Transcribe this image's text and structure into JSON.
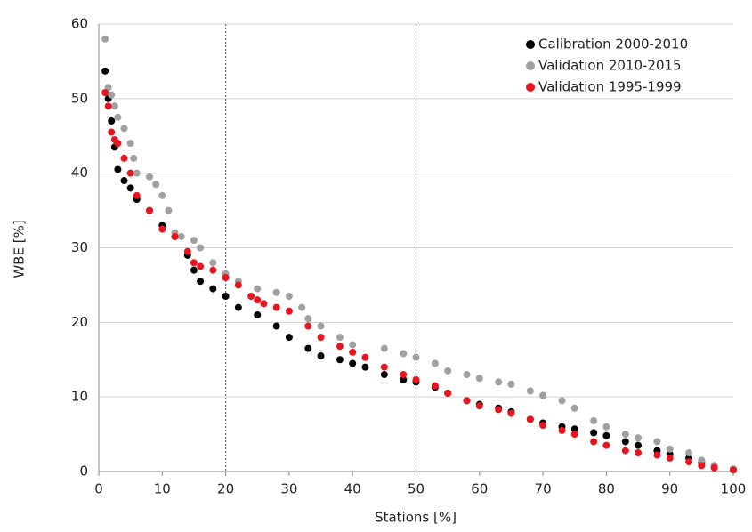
{
  "chart_data": {
    "type": "scatter",
    "x_label": "Stations [%]",
    "y_label": "WBE [%]",
    "xlim": [
      0,
      100
    ],
    "xticks": [
      0,
      10,
      20,
      30,
      40,
      50,
      60,
      70,
      80,
      90,
      100
    ],
    "ylim": [
      0,
      60
    ],
    "yticks": [
      0,
      10,
      20,
      30,
      40,
      50,
      60
    ],
    "grid": true,
    "vlines": [
      20,
      50
    ],
    "vline_color": "#4a7bc8",
    "legend": "upper right",
    "series": [
      {
        "name": "Calibration 2000-2010",
        "color": "#000000",
        "x": [
          1,
          1.5,
          2,
          2.5,
          3,
          4,
          5,
          6,
          8,
          10,
          12,
          14,
          15,
          16,
          18,
          20,
          22,
          25,
          28,
          30,
          33,
          35,
          38,
          40,
          42,
          45,
          48,
          50,
          53,
          55,
          58,
          60,
          63,
          65,
          68,
          70,
          73,
          75,
          78,
          80,
          83,
          85,
          88,
          90,
          93,
          95,
          97,
          100
        ],
        "values": [
          53.7,
          50,
          47,
          43.5,
          40.5,
          39,
          38,
          36.5,
          35,
          33,
          31.5,
          29,
          27,
          25.5,
          24.5,
          23.5,
          22,
          21,
          19.5,
          18,
          16.5,
          15.5,
          15,
          14.5,
          14,
          13,
          12.3,
          12,
          11.3,
          10.5,
          9.5,
          9,
          8.5,
          8,
          7,
          6.5,
          6,
          5.7,
          5.2,
          4.8,
          4,
          3.5,
          2.8,
          2.3,
          1.8,
          1.2,
          0.7,
          0.3
        ]
      },
      {
        "name": "Validation 2010-2015",
        "color": "#a0a0a0",
        "x": [
          1,
          1.5,
          2,
          2.5,
          3,
          4,
          5,
          5.5,
          6,
          8,
          9,
          10,
          11,
          12,
          13,
          15,
          16,
          18,
          20,
          22,
          25,
          28,
          30,
          32,
          33,
          35,
          38,
          40,
          45,
          48,
          50,
          53,
          55,
          58,
          60,
          63,
          65,
          68,
          70,
          73,
          75,
          78,
          80,
          83,
          85,
          88,
          90,
          93,
          95,
          97,
          100
        ],
        "values": [
          58,
          51.5,
          50.5,
          49,
          47.5,
          46,
          44,
          42,
          40,
          39.5,
          38.5,
          37,
          35,
          32,
          31.5,
          31,
          30,
          28,
          26.5,
          25.5,
          24.5,
          24,
          23.5,
          22,
          20.5,
          19.5,
          18,
          17,
          16.5,
          15.8,
          15.3,
          14.5,
          13.5,
          13,
          12.5,
          12,
          11.7,
          10.8,
          10.2,
          9.5,
          8.5,
          6.8,
          6,
          5,
          4.5,
          4,
          3,
          2.5,
          1.5,
          0.8,
          0.3
        ]
      },
      {
        "name": "Validation 1995-1999",
        "color": "#e8141e",
        "x": [
          1,
          1.5,
          2,
          2.5,
          3,
          4,
          5,
          6,
          8,
          10,
          12,
          14,
          15,
          16,
          18,
          20,
          22,
          24,
          25,
          26,
          28,
          30,
          33,
          35,
          38,
          40,
          42,
          45,
          48,
          50,
          53,
          55,
          58,
          60,
          63,
          65,
          68,
          70,
          73,
          75,
          78,
          80,
          83,
          85,
          88,
          90,
          93,
          95,
          97,
          100
        ],
        "values": [
          50.8,
          49,
          45.5,
          44.5,
          44,
          42,
          40,
          37,
          35,
          32.5,
          31.5,
          29.5,
          28,
          27.5,
          27,
          26,
          25,
          23.5,
          23,
          22.5,
          22,
          21.5,
          19.5,
          18,
          16.8,
          16,
          15.3,
          14,
          13,
          12.3,
          11.5,
          10.5,
          9.5,
          8.8,
          8.3,
          7.8,
          7,
          6.2,
          5.5,
          5,
          4,
          3.5,
          2.8,
          2.5,
          2.2,
          1.8,
          1.3,
          0.8,
          0.5,
          0.2
        ]
      }
    ]
  }
}
